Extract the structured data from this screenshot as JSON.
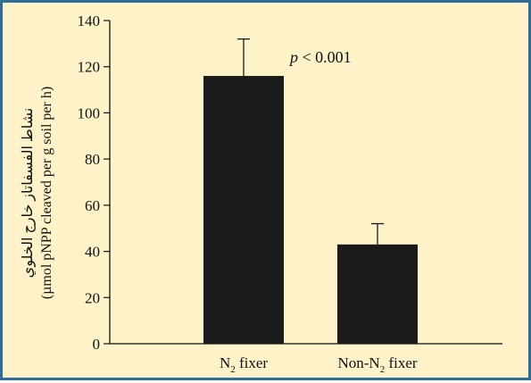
{
  "chart_data": {
    "type": "bar",
    "categories": [
      "N2 fixer",
      "Non-N2 fixer"
    ],
    "category_parts": [
      {
        "before": "N",
        "sub": "2",
        "after": " fixer"
      },
      {
        "before": "Non-N",
        "sub": "2",
        "after": " fixer"
      }
    ],
    "values": [
      116,
      43
    ],
    "errors": [
      16,
      9
    ],
    "ylim": [
      0,
      140
    ],
    "yticks": [
      0,
      20,
      40,
      60,
      80,
      100,
      120,
      140
    ],
    "ylabel_line1": "نشاط الفسفاتاز خارج الخلوي",
    "ylabel_line2": "(µmol pNPP cleaved per g soil per h)",
    "annotation_italic": "p",
    "annotation_rest": " < 0.001",
    "colors": {
      "bar": "#1a1a1a",
      "background": "#fdf2c8",
      "border": "#2e6c9a"
    }
  }
}
